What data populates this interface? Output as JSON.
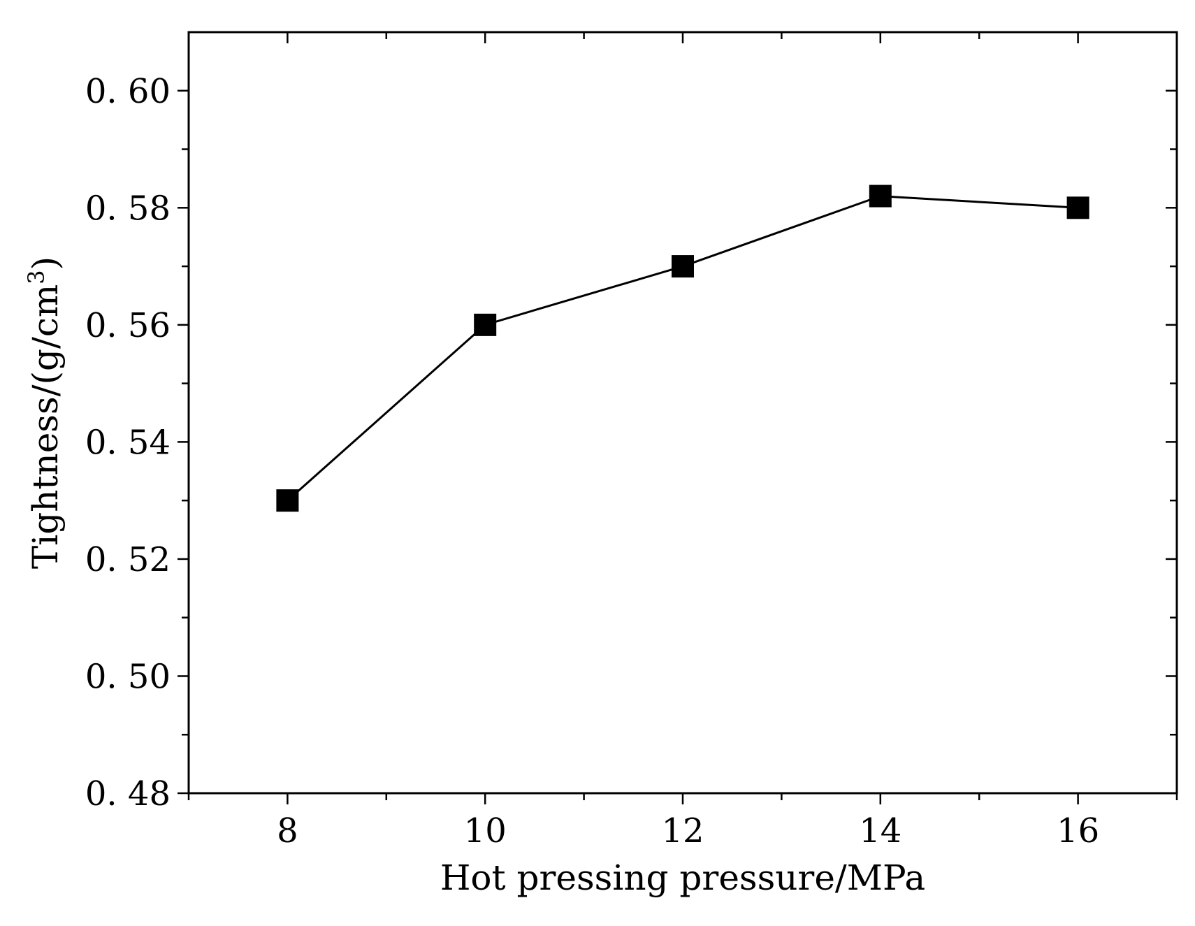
{
  "chart_data": {
    "type": "line",
    "title": "",
    "xlabel": "Hot pressing pressure/MPa",
    "ylabel": "Tightness/(g/cm",
    "ylabel_sup": "3",
    "ylabel_close": ")",
    "xlim": [
      7,
      17
    ],
    "ylim": [
      0.48,
      0.61
    ],
    "x_ticks": [
      8,
      10,
      12,
      14,
      16
    ],
    "x_tick_labels": [
      "8",
      "10",
      "12",
      "14",
      "16"
    ],
    "x_minor_ticks": [
      7,
      9,
      11,
      13,
      15,
      17
    ],
    "y_ticks": [
      0.48,
      0.5,
      0.52,
      0.54,
      0.56,
      0.58,
      0.6
    ],
    "y_tick_labels": [
      "0. 48",
      "0. 50",
      "0. 52",
      "0. 54",
      "0. 56",
      "0. 58",
      "0. 60"
    ],
    "y_minor_ticks": [
      0.49,
      0.51,
      0.53,
      0.55,
      0.57,
      0.59
    ],
    "grid": false,
    "series": [
      {
        "name": "Tightness",
        "marker": "square",
        "x": [
          8,
          10,
          12,
          14,
          16
        ],
        "values": [
          0.53,
          0.56,
          0.57,
          0.582,
          0.58
        ]
      }
    ]
  }
}
